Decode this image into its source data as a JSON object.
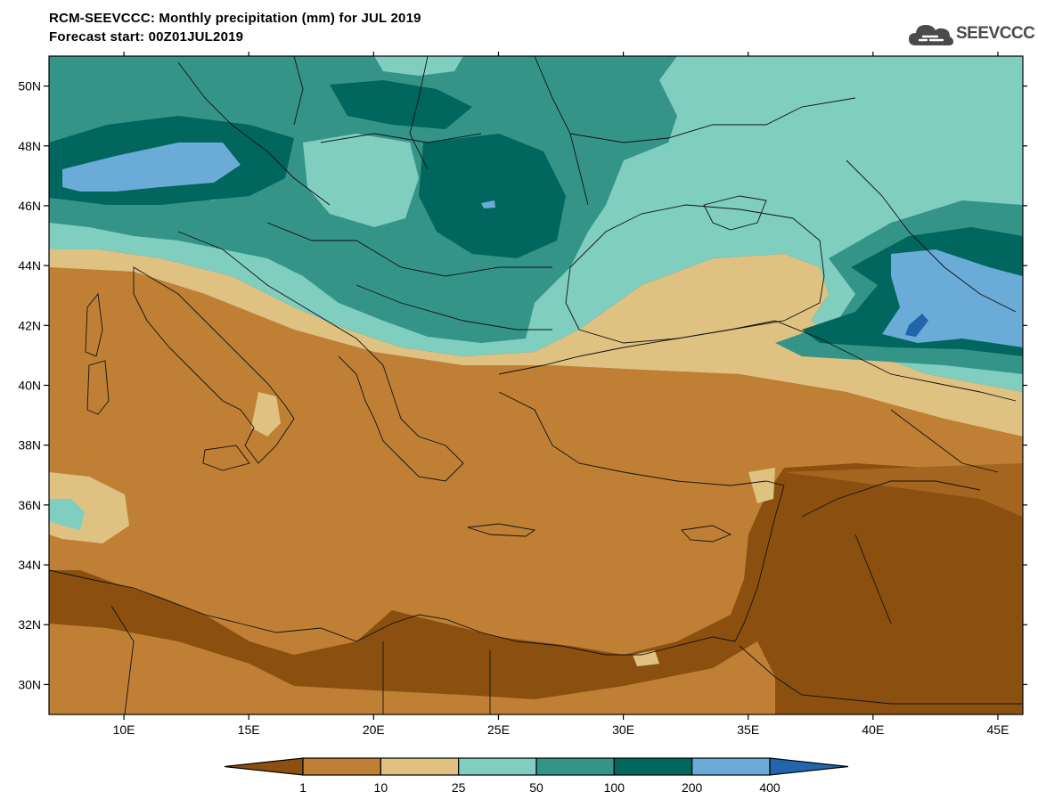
{
  "header": {
    "title_line1": "RCM-SEEVCCC: Monthly precipitation (mm) for JUL 2019",
    "title_line2": "Forecast start: 00Z01JUL2019"
  },
  "logo": {
    "text": "SEEVCCC",
    "icon": "cloud-icon"
  },
  "map": {
    "lon_ticks": [
      "10E",
      "15E",
      "20E",
      "25E",
      "30E",
      "35E",
      "40E",
      "45E"
    ],
    "lat_ticks": [
      "50N",
      "48N",
      "46N",
      "44N",
      "42N",
      "40N",
      "38N",
      "36N",
      "34N",
      "32N",
      "30N"
    ],
    "lon_range": [
      7,
      46
    ],
    "lat_range": [
      29,
      51
    ]
  },
  "colorbar": {
    "labels": [
      "1",
      "10",
      "25",
      "50",
      "100",
      "200",
      "400"
    ],
    "colors": [
      "#8b5010",
      "#bf8035",
      "#dfc282",
      "#7fcec0",
      "#359488",
      "#01665e",
      "#6aabd8",
      "#2166ac"
    ]
  }
}
